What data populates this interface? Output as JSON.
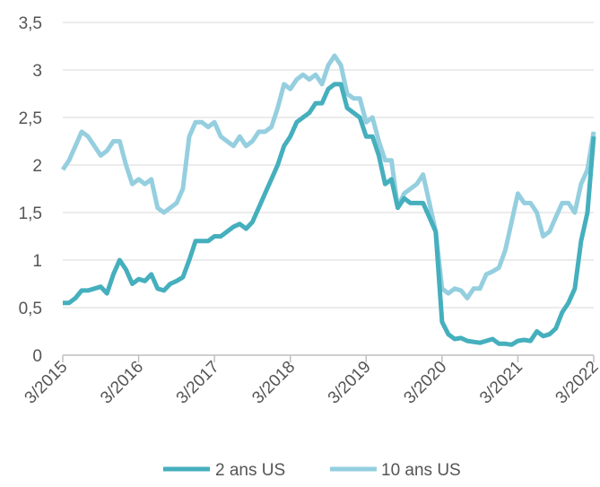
{
  "chart_data": {
    "type": "line",
    "x": [
      "3/2015",
      "4/2015",
      "5/2015",
      "6/2015",
      "7/2015",
      "8/2015",
      "9/2015",
      "10/2015",
      "11/2015",
      "12/2015",
      "1/2016",
      "2/2016",
      "3/2016",
      "4/2016",
      "5/2016",
      "6/2016",
      "7/2016",
      "8/2016",
      "9/2016",
      "10/2016",
      "11/2016",
      "12/2016",
      "1/2017",
      "2/2017",
      "3/2017",
      "4/2017",
      "5/2017",
      "6/2017",
      "7/2017",
      "8/2017",
      "9/2017",
      "10/2017",
      "11/2017",
      "12/2017",
      "1/2018",
      "2/2018",
      "3/2018",
      "4/2018",
      "5/2018",
      "6/2018",
      "7/2018",
      "8/2018",
      "9/2018",
      "10/2018",
      "11/2018",
      "12/2018",
      "1/2019",
      "2/2019",
      "3/2019",
      "4/2019",
      "5/2019",
      "6/2019",
      "7/2019",
      "8/2019",
      "9/2019",
      "10/2019",
      "11/2019",
      "12/2019",
      "1/2020",
      "2/2020",
      "3/2020",
      "4/2020",
      "5/2020",
      "6/2020",
      "7/2020",
      "8/2020",
      "9/2020",
      "10/2020",
      "11/2020",
      "12/2020",
      "1/2021",
      "2/2021",
      "3/2021",
      "4/2021",
      "5/2021",
      "6/2021",
      "7/2021",
      "8/2021",
      "9/2021",
      "10/2021",
      "11/2021",
      "12/2021",
      "1/2022",
      "2/2022",
      "3/2022"
    ],
    "xticks": [
      "3/2015",
      "3/2016",
      "3/2017",
      "3/2018",
      "3/2019",
      "3/2020",
      "3/2021",
      "3/2022"
    ],
    "series": [
      {
        "name": "2 ans US",
        "color": "#45afbd",
        "values": [
          0.55,
          0.55,
          0.6,
          0.68,
          0.68,
          0.7,
          0.72,
          0.65,
          0.85,
          1.0,
          0.9,
          0.75,
          0.8,
          0.78,
          0.85,
          0.7,
          0.68,
          0.75,
          0.78,
          0.82,
          1.0,
          1.2,
          1.2,
          1.2,
          1.25,
          1.25,
          1.3,
          1.35,
          1.38,
          1.33,
          1.4,
          1.55,
          1.7,
          1.85,
          2.0,
          2.2,
          2.3,
          2.45,
          2.5,
          2.55,
          2.65,
          2.65,
          2.8,
          2.85,
          2.85,
          2.6,
          2.55,
          2.5,
          2.3,
          2.3,
          2.1,
          1.8,
          1.85,
          1.55,
          1.65,
          1.6,
          1.6,
          1.6,
          1.45,
          1.3,
          0.35,
          0.22,
          0.17,
          0.18,
          0.15,
          0.14,
          0.13,
          0.15,
          0.17,
          0.12,
          0.12,
          0.11,
          0.15,
          0.16,
          0.15,
          0.25,
          0.2,
          0.22,
          0.28,
          0.45,
          0.55,
          0.7,
          1.2,
          1.5,
          2.3
        ]
      },
      {
        "name": "10 ans US",
        "color": "#95cfdf",
        "values": [
          1.95,
          2.05,
          2.2,
          2.35,
          2.3,
          2.2,
          2.1,
          2.15,
          2.25,
          2.25,
          2.0,
          1.8,
          1.85,
          1.8,
          1.85,
          1.55,
          1.5,
          1.55,
          1.6,
          1.75,
          2.3,
          2.45,
          2.45,
          2.4,
          2.45,
          2.3,
          2.25,
          2.2,
          2.3,
          2.2,
          2.25,
          2.35,
          2.35,
          2.4,
          2.6,
          2.85,
          2.8,
          2.9,
          2.95,
          2.9,
          2.95,
          2.85,
          3.05,
          3.15,
          3.05,
          2.75,
          2.7,
          2.7,
          2.45,
          2.5,
          2.25,
          2.05,
          2.05,
          1.55,
          1.7,
          1.75,
          1.8,
          1.9,
          1.6,
          1.3,
          0.7,
          0.65,
          0.7,
          0.68,
          0.6,
          0.7,
          0.7,
          0.85,
          0.88,
          0.92,
          1.1,
          1.4,
          1.7,
          1.6,
          1.6,
          1.5,
          1.25,
          1.3,
          1.45,
          1.6,
          1.6,
          1.5,
          1.8,
          1.95,
          2.35
        ]
      }
    ],
    "ylim": [
      0,
      3.5
    ],
    "yticks": [
      0,
      {
        "value": 0.5,
        "label": "0,5"
      },
      1,
      {
        "value": 1.5,
        "label": "1,5"
      },
      2,
      {
        "value": 2.5,
        "label": "2,5"
      },
      3,
      {
        "value": 3.5,
        "label": "3,5"
      }
    ],
    "grid": true,
    "legend": "bottom"
  }
}
